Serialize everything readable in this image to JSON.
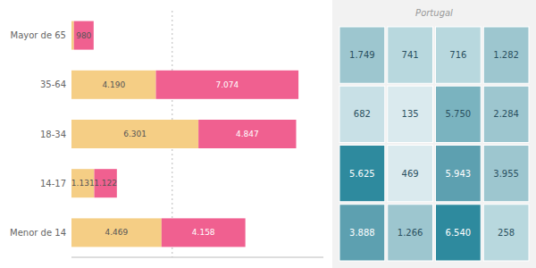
{
  "chart_data": [
    {
      "type": "bar",
      "orientation": "horizontal",
      "stacked": true,
      "categories": [
        "Mayor de 65",
        "35-64",
        "18-34",
        "14-17",
        "Menor de 14"
      ],
      "series": [
        {
          "color": "#F5CE85",
          "values": [
            120,
            4190,
            6301,
            1131,
            4469
          ],
          "value_labels": [
            null,
            "4.190",
            "6.301",
            "1.131",
            "4.469"
          ]
        },
        {
          "color": "#F06090",
          "values": [
            980,
            7074,
            4847,
            1122,
            4158
          ],
          "value_labels": [
            "980",
            "7.074",
            "4.847",
            "1.122",
            "4.158"
          ]
        }
      ],
      "xlim": [
        0,
        12500
      ],
      "xticks": [
        5000
      ],
      "grid": true,
      "tick_labels": "y",
      "data_labels": true
    },
    {
      "type": "map",
      "values": [
        1749,
        741,
        716,
        1282,
        682,
        135,
        5750,
        2284,
        5625,
        469,
        5943,
        3955,
        3888,
        1266,
        6540,
        258
      ],
      "value_labels": [
        "1.749",
        "741",
        "716",
        "1.282",
        "682",
        "135",
        "5.750",
        "2.284",
        "5.625",
        "469",
        "5.943",
        "3.955",
        "3.888",
        "1.266",
        "6.540",
        "258"
      ],
      "colors": [
        "#9dc6cf",
        "#b8d8de",
        "#b8d8de",
        "#9dc6cf",
        "#c8e0e6",
        "#daeaee",
        "#7ab3bf",
        "#9dc6cf",
        "#2e8a9e",
        "#daeaee",
        "#5da0b0",
        "#9dc6cf",
        "#5da0b0",
        "#9dc6cf",
        "#2e8a9e",
        "#b8d8de"
      ],
      "annotations": [
        "Portugal"
      ],
      "data_labels": true
    }
  ]
}
